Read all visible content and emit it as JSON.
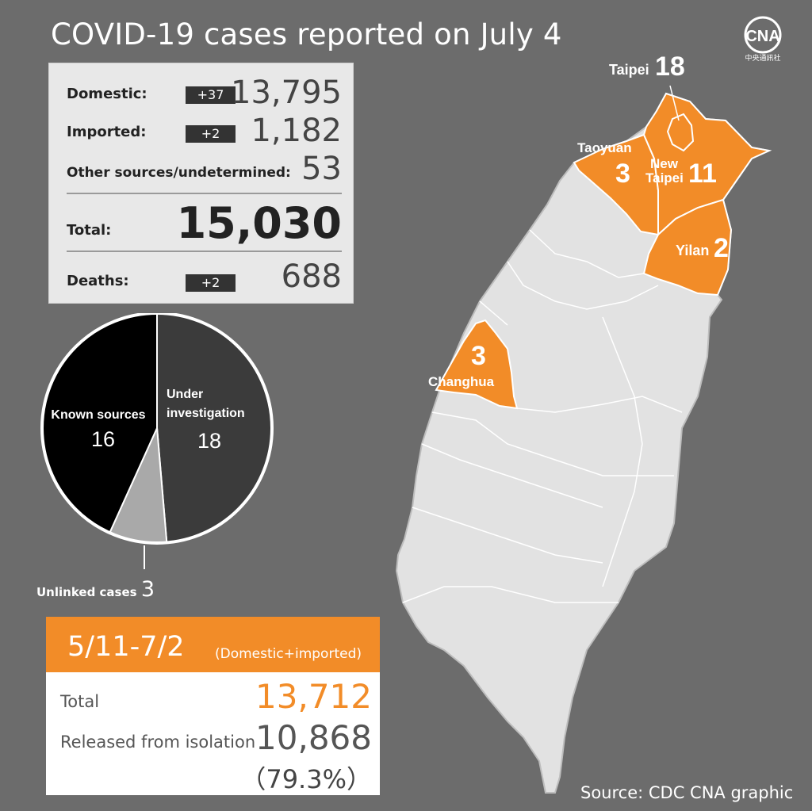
{
  "title": "COVID-19 cases reported on July 4",
  "logo": {
    "mark": "CNA",
    "text": "中央通訊社"
  },
  "stats": {
    "domestic": {
      "label": "Domestic:",
      "delta": "+37",
      "value": "13,795"
    },
    "imported": {
      "label": "Imported:",
      "delta": "+2",
      "value": "1,182"
    },
    "other": {
      "label": "Other sources/undetermined:",
      "value": "53"
    },
    "total": {
      "label": "Total:",
      "value": "15,030"
    },
    "deaths": {
      "label": "Deaths:",
      "delta": "+2",
      "value": "688"
    }
  },
  "chart_data": [
    {
      "type": "pie",
      "series": [
        {
          "name": "Known sources",
          "value": 16,
          "color": "#000000"
        },
        {
          "name": "Under investigation",
          "value": 18,
          "color": "#3b3b3b"
        },
        {
          "name": "Unlinked cases",
          "value": 3,
          "color": "#a9a9a9"
        }
      ],
      "labels": {
        "known_line1": "Known sources",
        "known_value": "16",
        "under_line1": "Under",
        "under_line2": "investigation",
        "under_value": "18",
        "unlinked_label": "Unlinked cases",
        "unlinked_value": "3"
      }
    },
    {
      "type": "map",
      "regions": [
        {
          "name": "Taipei",
          "value": 18
        },
        {
          "name": "New Taipei",
          "value": 11
        },
        {
          "name": "Taoyuan",
          "value": 3
        },
        {
          "name": "Yilan",
          "value": 2
        },
        {
          "name": "Changhua",
          "value": 3
        }
      ],
      "labels": {
        "taipei": "Taipei",
        "taipei_value": "18",
        "newtaipei_line1": "New",
        "newtaipei_line2": "Taipei",
        "newtaipei_value": "11",
        "taoyuan": "Taoyuan",
        "taoyuan_value": "3",
        "yilan": "Yilan",
        "yilan_value": "2",
        "changhua": "Changhua",
        "changhua_value": "3"
      },
      "highlight_color": "#f28c28"
    }
  ],
  "cumulative": {
    "range": "5/11-7/2",
    "note": "(Domestic+imported)",
    "total_label": "Total",
    "total_value": "13,712",
    "released_label": "Released from isolation",
    "released_value": "10,868",
    "released_pct": "（79.3%）"
  },
  "source": "Source: CDC  CNA graphic",
  "colors": {
    "accent": "#f28c28",
    "background": "#6c6c6c",
    "panel": "#e8e8e8"
  }
}
